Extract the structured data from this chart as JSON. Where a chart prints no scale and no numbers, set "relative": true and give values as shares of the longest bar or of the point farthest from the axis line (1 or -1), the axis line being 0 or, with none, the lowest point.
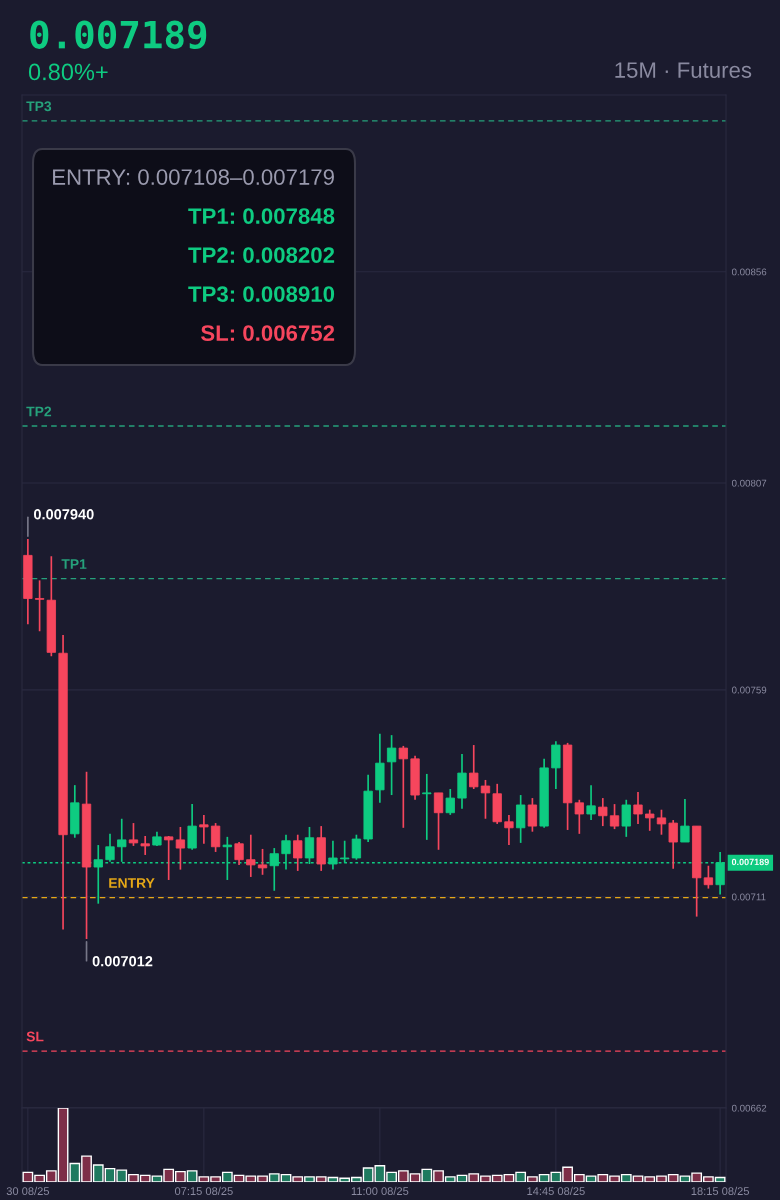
{
  "chart_data": [
    {
      "type": "candlestick",
      "title": "0.007189",
      "subtitle": "0.80%+",
      "annotations": [
        "15M · Futures",
        "ENTRY: 0.007108–0.007179",
        "TP1: 0.007848",
        "TP2: 0.008202",
        "TP3: 0.008910",
        "SL: 0.006752",
        "0.007940",
        "0.007012"
      ],
      "ohlc": [
        [
          0.007902,
          0.00794,
          0.007742,
          0.007802
        ],
        [
          0.007802,
          0.007844,
          0.007726,
          0.0078
        ],
        [
          0.007798,
          0.0079,
          0.007668,
          0.007677
        ],
        [
          0.007675,
          0.007717,
          0.007034,
          0.007254
        ],
        [
          0.007256,
          0.007369,
          0.007247,
          0.007328
        ],
        [
          0.007325,
          0.0074,
          0.007012,
          0.007179
        ],
        [
          0.007179,
          0.00723,
          0.007094,
          0.007196
        ],
        [
          0.007196,
          0.007256,
          0.007191,
          0.007226
        ],
        [
          0.007226,
          0.007291,
          0.007191,
          0.007242
        ],
        [
          0.007242,
          0.007281,
          0.007228,
          0.007235
        ],
        [
          0.007233,
          0.007251,
          0.007207,
          0.007228
        ],
        [
          0.00723,
          0.007261,
          0.007228,
          0.007249
        ],
        [
          0.007249,
          0.007251,
          0.007149,
          0.007242
        ],
        [
          0.007242,
          0.007272,
          0.007173,
          0.007223
        ],
        [
          0.007223,
          0.007325,
          0.007219,
          0.007274
        ],
        [
          0.007277,
          0.0073,
          0.007233,
          0.007272
        ],
        [
          0.007274,
          0.007281,
          0.007214,
          0.007226
        ],
        [
          0.007226,
          0.007249,
          0.007149,
          0.00723
        ],
        [
          0.007233,
          0.007237,
          0.007184,
          0.007196
        ],
        [
          0.007196,
          0.007254,
          0.007156,
          0.007184
        ],
        [
          0.007184,
          0.007221,
          0.007161,
          0.007177
        ],
        [
          0.007182,
          0.007223,
          0.007124,
          0.00721
        ],
        [
          0.00721,
          0.007254,
          0.007173,
          0.00724
        ],
        [
          0.00724,
          0.007254,
          0.00717,
          0.0072
        ],
        [
          0.0072,
          0.007272,
          0.007186,
          0.007247
        ],
        [
          0.007247,
          0.007274,
          0.00717,
          0.007186
        ],
        [
          0.007186,
          0.00724,
          0.007173,
          0.0072
        ],
        [
          0.007198,
          0.00724,
          0.007189,
          0.0072
        ],
        [
          0.0072,
          0.007254,
          0.007196,
          0.007244
        ],
        [
          0.007244,
          0.007393,
          0.007237,
          0.007355
        ],
        [
          0.007358,
          0.007488,
          0.007328,
          0.00742
        ],
        [
          0.007423,
          0.007485,
          0.007346,
          0.007455
        ],
        [
          0.007455,
          0.00746,
          0.00727,
          0.00743
        ],
        [
          0.00743,
          0.007437,
          0.007335,
          0.007346
        ],
        [
          0.007349,
          0.007395,
          0.007242,
          0.007351
        ],
        [
          0.007351,
          0.007351,
          0.007219,
          0.007305
        ],
        [
          0.007305,
          0.00736,
          0.0073,
          0.007339
        ],
        [
          0.007339,
          0.007441,
          0.007314,
          0.007397
        ],
        [
          0.007397,
          0.007462,
          0.00736,
          0.007365
        ],
        [
          0.007367,
          0.007381,
          0.007291,
          0.007351
        ],
        [
          0.007349,
          0.007372,
          0.007279,
          0.007284
        ],
        [
          0.007284,
          0.0073,
          0.00723,
          0.00727
        ],
        [
          0.00727,
          0.007346,
          0.007235,
          0.007323
        ],
        [
          0.007323,
          0.007339,
          0.007261,
          0.007274
        ],
        [
          0.007274,
          0.00743,
          0.00727,
          0.007409
        ],
        [
          0.007409,
          0.007471,
          0.00736,
          0.007462
        ],
        [
          0.007462,
          0.007467,
          0.007265,
          0.007328
        ],
        [
          0.007328,
          0.007335,
          0.007256,
          0.007302
        ],
        [
          0.007302,
          0.007369,
          0.007288,
          0.007321
        ],
        [
          0.007318,
          0.007339,
          0.007274,
          0.007298
        ],
        [
          0.007298,
          0.007325,
          0.007267,
          0.007274
        ],
        [
          0.007274,
          0.007335,
          0.007249,
          0.007323
        ],
        [
          0.007323,
          0.007353,
          0.007279,
          0.007302
        ],
        [
          0.007302,
          0.007312,
          0.007263,
          0.007293
        ],
        [
          0.007293,
          0.007312,
          0.007254,
          0.007279
        ],
        [
          0.007281,
          0.007288,
          0.007175,
          0.007237
        ],
        [
          0.007237,
          0.007337,
          0.007237,
          0.007274
        ],
        [
          0.007274,
          0.007274,
          0.007064,
          0.007154
        ],
        [
          0.007154,
          0.007182,
          0.007129,
          0.007138
        ],
        [
          0.007138,
          0.007214,
          0.007115,
          0.007189
        ]
      ],
      "colors": [
        "#f6465d",
        "#f6465d",
        "#f6465d",
        "#f6465d",
        "#0ecb81",
        "#f6465d",
        "#0ecb81",
        "#0ecb81",
        "#0ecb81",
        "#f6465d",
        "#f6465d",
        "#0ecb81",
        "#f6465d",
        "#f6465d",
        "#0ecb81",
        "#f6465d",
        "#f6465d",
        "#0ecb81",
        "#f6465d",
        "#f6465d",
        "#f6465d",
        "#0ecb81",
        "#0ecb81",
        "#f6465d",
        "#0ecb81",
        "#f6465d",
        "#0ecb81",
        "#0ecb81",
        "#0ecb81",
        "#0ecb81",
        "#0ecb81",
        "#0ecb81",
        "#f6465d",
        "#f6465d",
        "#0ecb81",
        "#f6465d",
        "#0ecb81",
        "#0ecb81",
        "#f6465d",
        "#f6465d",
        "#f6465d",
        "#f6465d",
        "#0ecb81",
        "#f6465d",
        "#0ecb81",
        "#0ecb81",
        "#f6465d",
        "#f6465d",
        "#0ecb81",
        "#f6465d",
        "#f6465d",
        "#0ecb81",
        "#f6465d",
        "#f6465d",
        "#f6465d",
        "#f6465d",
        "#0ecb81",
        "#f6465d",
        "#f6465d",
        "#0ecb81"
      ],
      "ylim": [
        0.00662,
        0.00897
      ],
      "yticks": [
        0.00662,
        0.00711,
        0.00759,
        0.00807,
        0.00856
      ],
      "ref_lines": [
        {
          "axis": "y",
          "value": 0.00891,
          "label": "TP3",
          "color": "#26a17b",
          "line_style": "dashed"
        },
        {
          "axis": "y",
          "value": 0.008202,
          "label": "TP2",
          "color": "#26a17b",
          "line_style": "dashed"
        },
        {
          "axis": "y",
          "value": 0.007848,
          "label": "TP1",
          "color": "#26a17b",
          "line_style": "dashed"
        },
        {
          "axis": "y",
          "value": 0.007189,
          "label": "0.007189",
          "color": "#0ecb81",
          "line_style": "dotted"
        },
        {
          "axis": "y",
          "value": 0.007108,
          "label": "ENTRY",
          "color": "#e6a817",
          "line_style": "dashed"
        },
        {
          "axis": "y",
          "value": 0.006752,
          "label": "SL",
          "color": "#f6465d",
          "line_style": "dashed"
        }
      ],
      "grid": true,
      "tick_labels": "y"
    },
    {
      "type": "bar",
      "relative": true,
      "categories": [
        "30 08/25",
        null,
        null,
        null,
        null,
        null,
        null,
        null,
        null,
        null,
        null,
        null,
        null,
        null,
        null,
        "07:15 08/25",
        null,
        null,
        null,
        null,
        null,
        null,
        null,
        null,
        null,
        null,
        null,
        null,
        null,
        null,
        "11:00 08/25",
        null,
        null,
        null,
        null,
        null,
        null,
        null,
        null,
        null,
        null,
        null,
        null,
        null,
        null,
        "14:45 08/25",
        null,
        null,
        null,
        null,
        null,
        null,
        null,
        null,
        null,
        null,
        null,
        null,
        null,
        "18:15 08/25"
      ],
      "values": [
        0.13,
        0.09,
        0.15,
        1,
        0.25,
        0.35,
        0.23,
        0.18,
        0.16,
        0.1,
        0.09,
        0.08,
        0.17,
        0.14,
        0.15,
        0.07,
        0.07,
        0.13,
        0.09,
        0.08,
        0.08,
        0.11,
        0.1,
        0.07,
        0.07,
        0.07,
        0.06,
        0.05,
        0.06,
        0.19,
        0.22,
        0.13,
        0.15,
        0.11,
        0.17,
        0.15,
        0.07,
        0.09,
        0.11,
        0.08,
        0.09,
        0.1,
        0.13,
        0.07,
        0.1,
        0.13,
        0.2,
        0.1,
        0.08,
        0.1,
        0.08,
        0.1,
        0.08,
        0.07,
        0.08,
        0.1,
        0.08,
        0.12,
        0.07,
        0.06
      ],
      "colors": [
        "#7d2e48",
        "#7d2e48",
        "#7d2e48",
        "#7d2e48",
        "#1e7a5f",
        "#7d2e48",
        "#1e7a5f",
        "#1e7a5f",
        "#1e7a5f",
        "#7d2e48",
        "#7d2e48",
        "#1e7a5f",
        "#7d2e48",
        "#7d2e48",
        "#1e7a5f",
        "#7d2e48",
        "#7d2e48",
        "#1e7a5f",
        "#7d2e48",
        "#7d2e48",
        "#7d2e48",
        "#1e7a5f",
        "#1e7a5f",
        "#7d2e48",
        "#1e7a5f",
        "#7d2e48",
        "#1e7a5f",
        "#1e7a5f",
        "#1e7a5f",
        "#1e7a5f",
        "#1e7a5f",
        "#1e7a5f",
        "#7d2e48",
        "#7d2e48",
        "#1e7a5f",
        "#7d2e48",
        "#1e7a5f",
        "#1e7a5f",
        "#7d2e48",
        "#7d2e48",
        "#7d2e48",
        "#7d2e48",
        "#1e7a5f",
        "#7d2e48",
        "#1e7a5f",
        "#1e7a5f",
        "#7d2e48",
        "#7d2e48",
        "#1e7a5f",
        "#7d2e48",
        "#7d2e48",
        "#1e7a5f",
        "#7d2e48",
        "#7d2e48",
        "#7d2e48",
        "#7d2e48",
        "#1e7a5f",
        "#7d2e48",
        "#7d2e48",
        "#1e7a5f"
      ],
      "grid": "x",
      "tick_labels": "x"
    }
  ]
}
